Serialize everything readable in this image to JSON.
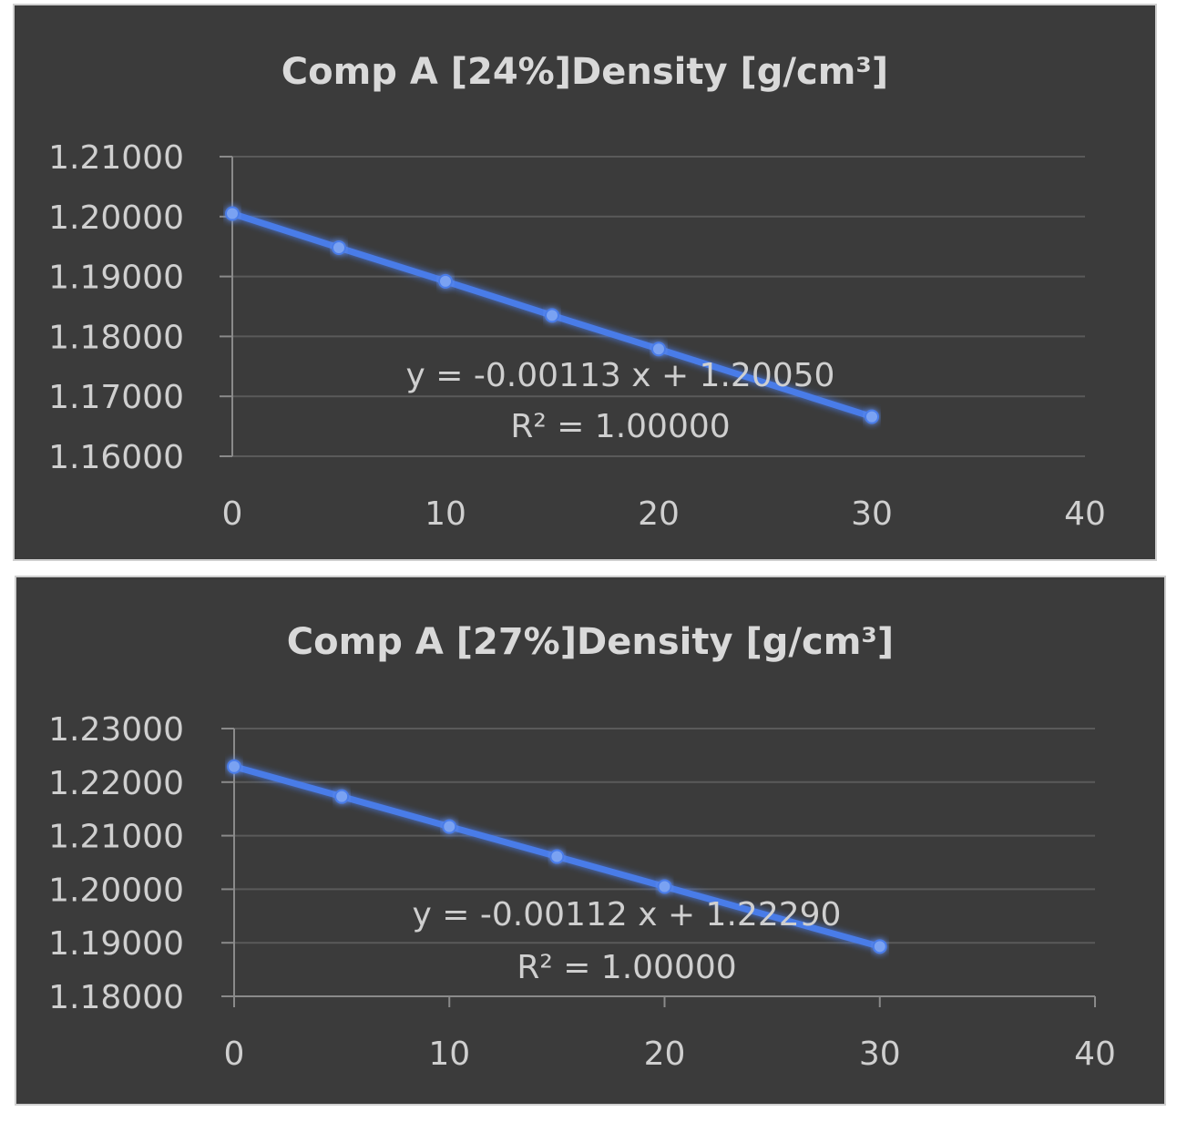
{
  "chart_data": [
    {
      "type": "scatter",
      "title": "Comp A [24%]Density [g/cm³]",
      "x": [
        0,
        5,
        10,
        15,
        20,
        30
      ],
      "y": [
        1.2005,
        1.1948,
        1.1892,
        1.1835,
        1.1779,
        1.1666
      ],
      "xlim": [
        0,
        40
      ],
      "ylim": [
        1.16,
        1.21
      ],
      "xticks": [
        "0",
        "10",
        "20",
        "30",
        "40"
      ],
      "yticks": [
        "1.16000",
        "1.17000",
        "1.18000",
        "1.19000",
        "1.20000",
        "1.21000"
      ],
      "trendline": {
        "slope": -0.00113,
        "intercept": 1.2005
      },
      "equation": "y = -0.00113 x + 1.20050",
      "r2_text": "R² = 1.00000",
      "grid": true,
      "line_color": "#4a7be8",
      "background": "#3b3b3b"
    },
    {
      "type": "scatter",
      "title": "Comp A [27%]Density [g/cm³]",
      "x": [
        0,
        5,
        10,
        15,
        20,
        30
      ],
      "y": [
        1.2229,
        1.2173,
        1.2117,
        1.2061,
        1.2005,
        1.1893
      ],
      "xlim": [
        0,
        40
      ],
      "ylim": [
        1.18,
        1.23
      ],
      "xticks": [
        "0",
        "10",
        "20",
        "30",
        "40"
      ],
      "yticks": [
        "1.18000",
        "1.19000",
        "1.20000",
        "1.21000",
        "1.22000",
        "1.23000"
      ],
      "trendline": {
        "slope": -0.00112,
        "intercept": 1.2229
      },
      "equation": "y = -0.00112 x + 1.22290",
      "r2_text": "R² = 1.00000",
      "grid": true,
      "line_color": "#4a7be8",
      "background": "#3b3b3b"
    }
  ]
}
